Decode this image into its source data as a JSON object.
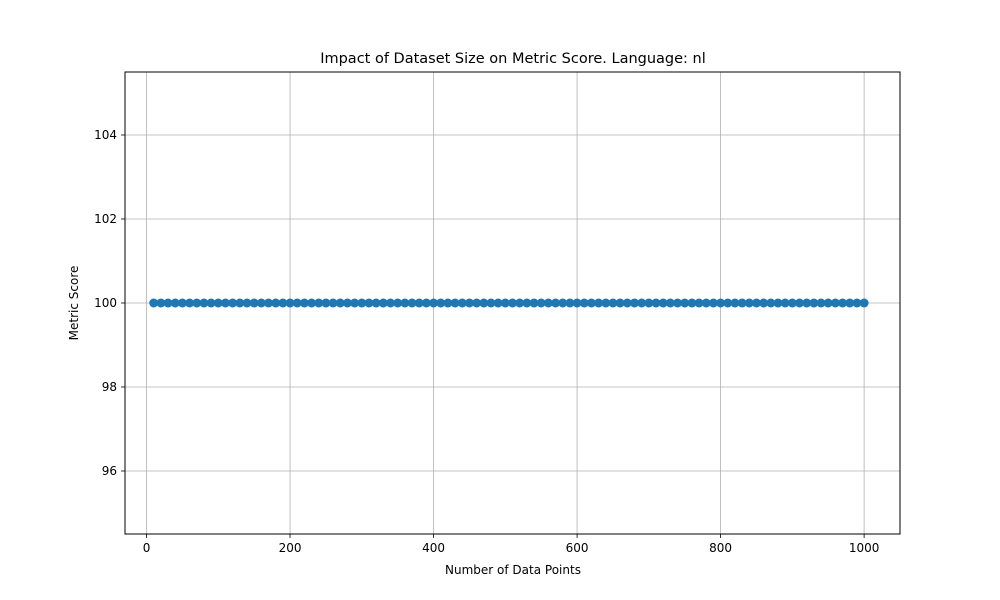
{
  "chart_data": {
    "type": "line",
    "title": "Impact of Dataset Size on Metric Score. Language: nl",
    "xlabel": "Number of Data Points",
    "ylabel": "Metric Score",
    "xlim": [
      -30,
      1050
    ],
    "ylim": [
      94.5,
      105.5
    ],
    "xticks": [
      0,
      200,
      400,
      600,
      800,
      1000
    ],
    "yticks": [
      96,
      98,
      100,
      102,
      104
    ],
    "grid": true,
    "series": [
      {
        "color": "#1f77b4",
        "marker": "circle",
        "x": [
          10,
          20,
          30,
          40,
          50,
          60,
          70,
          80,
          90,
          100,
          110,
          120,
          130,
          140,
          150,
          160,
          170,
          180,
          190,
          200,
          210,
          220,
          230,
          240,
          250,
          260,
          270,
          280,
          290,
          300,
          310,
          320,
          330,
          340,
          350,
          360,
          370,
          380,
          390,
          400,
          410,
          420,
          430,
          440,
          450,
          460,
          470,
          480,
          490,
          500,
          510,
          520,
          530,
          540,
          550,
          560,
          570,
          580,
          590,
          600,
          610,
          620,
          630,
          640,
          650,
          660,
          670,
          680,
          690,
          700,
          710,
          720,
          730,
          740,
          750,
          760,
          770,
          780,
          790,
          800,
          810,
          820,
          830,
          840,
          850,
          860,
          870,
          880,
          890,
          900,
          910,
          920,
          930,
          940,
          950,
          960,
          970,
          980,
          990,
          1000
        ],
        "y": [
          100,
          100,
          100,
          100,
          100,
          100,
          100,
          100,
          100,
          100,
          100,
          100,
          100,
          100,
          100,
          100,
          100,
          100,
          100,
          100,
          100,
          100,
          100,
          100,
          100,
          100,
          100,
          100,
          100,
          100,
          100,
          100,
          100,
          100,
          100,
          100,
          100,
          100,
          100,
          100,
          100,
          100,
          100,
          100,
          100,
          100,
          100,
          100,
          100,
          100,
          100,
          100,
          100,
          100,
          100,
          100,
          100,
          100,
          100,
          100,
          100,
          100,
          100,
          100,
          100,
          100,
          100,
          100,
          100,
          100,
          100,
          100,
          100,
          100,
          100,
          100,
          100,
          100,
          100,
          100,
          100,
          100,
          100,
          100,
          100,
          100,
          100,
          100,
          100,
          100,
          100,
          100,
          100,
          100,
          100,
          100,
          100,
          100,
          100,
          100
        ]
      }
    ]
  }
}
